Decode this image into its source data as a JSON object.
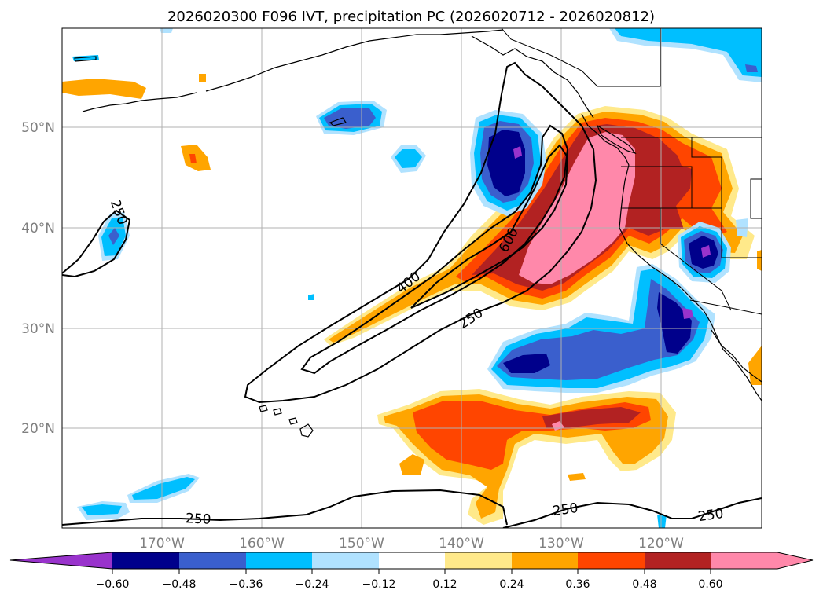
{
  "title": "2026020300 F096 IVT, precipitation PC (2026020712 - 2026020812)",
  "colors": {
    "lt_neg060": "#9933cc",
    "neg060_neg048": "#00008b",
    "neg048_neg036": "#3a5fcd",
    "neg036_neg024": "#00bfff",
    "neg024_neg012": "#b0e2ff",
    "neg012_012": "#ffffff",
    "pos012_024": "#ffe98a",
    "pos024_036": "#ffa500",
    "pos036_048": "#ff4500",
    "pos048_060": "#b22222",
    "gt_060": "#ff88aa"
  },
  "colorbar": {
    "ticks": [
      "−0.60",
      "−0.48",
      "−0.36",
      "−0.24",
      "−0.12",
      "0.12",
      "0.24",
      "0.36",
      "0.48",
      "0.60"
    ]
  },
  "axes": {
    "lat_labels": [
      "50°N",
      "40°N",
      "30°N",
      "20°N"
    ],
    "lon_labels": [
      "170°W",
      "160°W",
      "150°W",
      "140°W",
      "130°W",
      "120°W"
    ]
  },
  "ivt_contour_labels": [
    "250",
    "400",
    "600",
    "250",
    "250",
    "250",
    "250"
  ]
}
